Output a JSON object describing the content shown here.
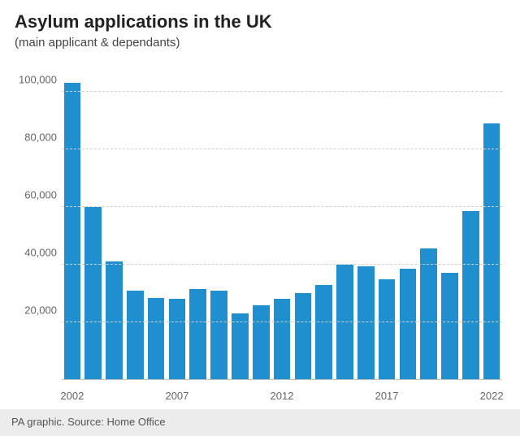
{
  "chart": {
    "type": "bar",
    "title": "Asylum applications in the UK",
    "title_fontsize": 22,
    "subtitle": "(main applicant & dependants)",
    "subtitle_fontsize": 15,
    "background_color": "#ffffff",
    "footer_background_color": "#ececec",
    "grid_color": "#cfcfcf",
    "axis_text_color": "#666666",
    "axis_fontsize": 13,
    "baseline_color": "#bfbfbf",
    "bar_color": "#1f8fcf",
    "bar_width": 0.8,
    "ylim": [
      0,
      110000
    ],
    "ytick_step": 20000,
    "yticks": [
      20000,
      40000,
      60000,
      80000,
      100000
    ],
    "ytick_labels": [
      "20,000",
      "40,000",
      "60,000",
      "80,000",
      "100,000"
    ],
    "years": [
      2002,
      2003,
      2004,
      2005,
      2006,
      2007,
      2008,
      2009,
      2010,
      2011,
      2012,
      2013,
      2014,
      2015,
      2016,
      2017,
      2018,
      2019,
      2020,
      2021,
      2022
    ],
    "values": [
      103000,
      60000,
      41000,
      31000,
      28500,
      28000,
      31500,
      31000,
      23000,
      26000,
      28000,
      30000,
      33000,
      40000,
      39500,
      35000,
      38500,
      45500,
      37000,
      58500,
      89000
    ],
    "xticks": [
      2002,
      2007,
      2012,
      2017,
      2022
    ],
    "source": "PA graphic. Source: Home Office",
    "source_fontsize": 13
  }
}
